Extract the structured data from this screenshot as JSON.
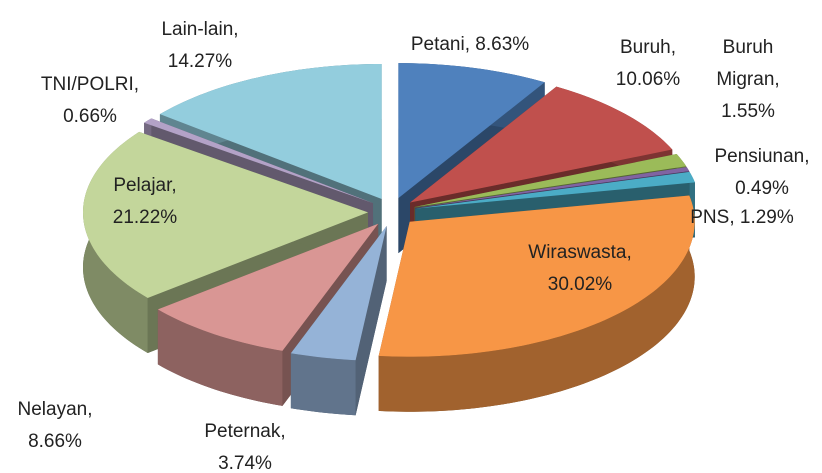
{
  "chart_data": {
    "type": "pie3d",
    "values": [
      8.63,
      10.06,
      1.55,
      0.49,
      1.29,
      30.02,
      3.74,
      8.66,
      21.22,
      0.66,
      14.27
    ],
    "value_labels": [
      [
        "Petani, 8.63%"
      ],
      [
        "Buruh,",
        "10.06%"
      ],
      [
        "Buruh",
        "Migran,",
        "1.55%"
      ],
      [
        "Pensiunan,",
        "0.49%"
      ],
      [
        "PNS, 1.29%"
      ],
      [
        "Wiraswasta,",
        "30.02%"
      ],
      [
        "Peternak,",
        "3.74%"
      ],
      [
        "Nelayan,",
        "8.66%"
      ],
      [
        "Pelajar,",
        "21.22%"
      ],
      [
        "TNI/POLRI,",
        "0.66%"
      ],
      [
        "Lain-lain,",
        "14.27%"
      ]
    ],
    "colors": [
      "#4f81bd",
      "#c0504d",
      "#9bbb59",
      "#8064a2",
      "#4bacc6",
      "#f79646",
      "#95b3d7",
      "#d99694",
      "#c3d69b",
      "#b3a2c7",
      "#93cddd"
    ]
  }
}
